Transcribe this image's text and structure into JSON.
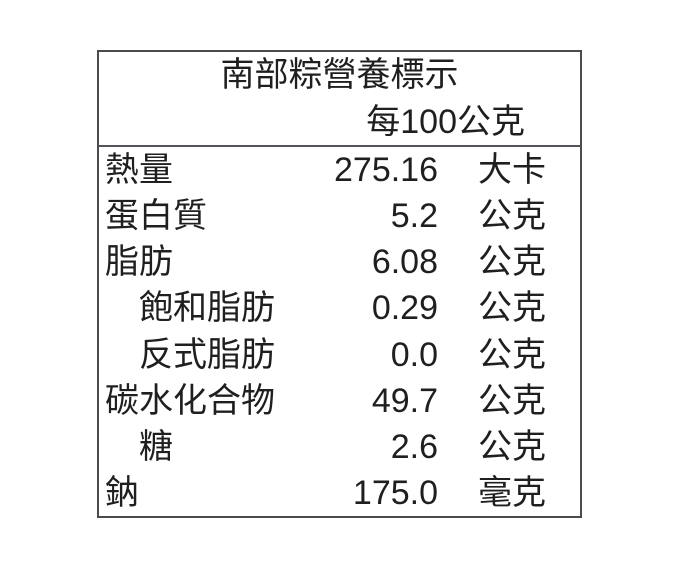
{
  "label": {
    "title": "南部粽營養標示",
    "serving": "每100公克",
    "rows": [
      {
        "name": "熱量",
        "value": "275.16",
        "unit": "大卡"
      },
      {
        "name": "蛋白質",
        "value": "5.2",
        "unit": "公克"
      },
      {
        "name": "脂肪",
        "value": "6.08",
        "unit": "公克"
      },
      {
        "name": "飽和脂肪",
        "value": "0.29",
        "unit": "公克"
      },
      {
        "name": "反式脂肪",
        "value": "0.0",
        "unit": "公克"
      },
      {
        "name": "碳水化合物",
        "value": "49.7",
        "unit": "公克"
      },
      {
        "name": "糖",
        "value": "2.6",
        "unit": "公克"
      },
      {
        "name": "鈉",
        "value": "175.0",
        "unit": "毫克"
      }
    ],
    "colors": {
      "text": "#1f1f1f",
      "border": "#4a4b4f",
      "background": "#ffffff"
    }
  }
}
